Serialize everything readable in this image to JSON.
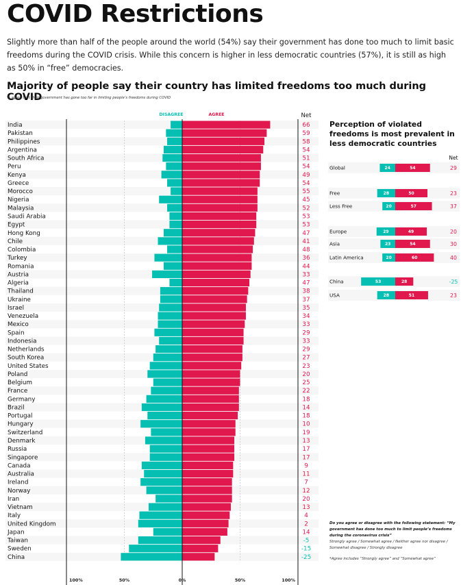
{
  "header": {
    "title": "COVID Restrictions",
    "intro": "Slightly more than half of the people around the world (54%) say their government has done too much to limit basic freedoms during the COVID crisis. While this concern is higher in less democratic countries (57%), it is still as high as 50% in “free” democracies.",
    "subtitle": "Majority of people say their country has limited freedoms too much during COVID",
    "note": "% agree that their government has gone too far in limiting people’s freedoms during COVID"
  },
  "colors": {
    "agree": "#e0184d",
    "disagree": "#05bfb3",
    "net_pos": "#e0184d",
    "net_neg": "#05bfb3"
  },
  "chart_data": [
    {
      "type": "bar",
      "orientation": "horizontal-diverging",
      "legend": {
        "disagree": "DISAGREE",
        "agree": "AGREE"
      },
      "net_header": "Net",
      "axis_ticks": [
        "100%",
        "50%",
        "0%",
        "50%",
        "100%"
      ],
      "xlim": [
        -100,
        100
      ],
      "categories": [
        "India",
        "Pakistan",
        "Philippines",
        "Argentina",
        "South Africa",
        "Peru",
        "Kenya",
        "Greece",
        "Morocco",
        "Nigeria",
        "Malaysia",
        "Saudi Arabia",
        "Egypt",
        "Hong Kong",
        "Chile",
        "Colombia",
        "Turkey",
        "Romania",
        "Austria",
        "Algeria",
        "Thailand",
        "Ukraine",
        "Israel",
        "Venezuela",
        "Mexico",
        "Spain",
        "Indonesia",
        "Netherlands",
        "South Korea",
        "United States",
        "Poland",
        "Belgium",
        "France",
        "Germany",
        "Brazil",
        "Portugal",
        "Hungary",
        "Switzerland",
        "Denmark",
        "Russia",
        "Singapore",
        "Canada",
        "Australia",
        "Ireland",
        "Norway",
        "Iran",
        "Vietnam",
        "Italy",
        "United Kingdom",
        "Japan",
        "Taiwan",
        "Sweden",
        "China"
      ],
      "series": [
        {
          "name": "agree",
          "values": [
            76,
            73,
            71,
            70,
            68,
            68,
            67,
            67,
            65,
            65,
            65,
            64,
            64,
            63,
            62,
            61,
            60,
            60,
            59,
            58,
            57,
            56,
            55,
            55,
            54,
            53,
            53,
            52,
            52,
            51,
            50,
            50,
            49,
            49,
            49,
            48,
            46,
            46,
            45,
            45,
            45,
            44,
            44,
            43,
            43,
            43,
            42,
            41,
            40,
            39,
            33,
            31,
            28
          ]
        },
        {
          "name": "disagree",
          "values": [
            10,
            14,
            13,
            16,
            17,
            14,
            18,
            13,
            10,
            20,
            13,
            11,
            11,
            16,
            21,
            13,
            24,
            16,
            26,
            11,
            19,
            19,
            20,
            21,
            21,
            24,
            20,
            23,
            25,
            28,
            30,
            25,
            27,
            31,
            35,
            30,
            36,
            27,
            32,
            28,
            28,
            35,
            33,
            36,
            31,
            23,
            29,
            37,
            38,
            25,
            38,
            46,
            53
          ]
        }
      ],
      "net": [
        66,
        59,
        58,
        54,
        51,
        54,
        49,
        54,
        55,
        45,
        52,
        53,
        53,
        47,
        41,
        48,
        36,
        44,
        33,
        47,
        38,
        37,
        35,
        34,
        33,
        29,
        33,
        29,
        27,
        23,
        20,
        25,
        22,
        18,
        14,
        18,
        10,
        19,
        13,
        17,
        17,
        9,
        11,
        7,
        12,
        20,
        13,
        4,
        2,
        14,
        -5,
        -15,
        -25
      ]
    },
    {
      "type": "bar",
      "orientation": "horizontal-diverging",
      "title": "Perception of violated freedoms is most prevalent in less democratic countries",
      "net_header": "Net",
      "categories": [
        "Global",
        "Free",
        "Less Free",
        "Europe",
        "Asia",
        "Latin America",
        "China",
        "USA"
      ],
      "series": [
        {
          "name": "disagree",
          "values": [
            24,
            28,
            20,
            29,
            23,
            20,
            53,
            28
          ]
        },
        {
          "name": "agree",
          "values": [
            54,
            50,
            57,
            49,
            54,
            60,
            28,
            51
          ]
        }
      ],
      "net": [
        29,
        23,
        37,
        20,
        30,
        40,
        -25,
        23
      ]
    }
  ],
  "footnote": {
    "question": "Do you agree or disagree with the following statement: “My government has done too much to limit people’s freedoms during the coronavirus crisis”",
    "options": "Strongly agree / Somewhat agree / Neither agree nor disagree / Somewhat disagree / Strongly disagree",
    "agree_def": "*Agree includes “Strongly agree” and “Somewhat agree”"
  }
}
